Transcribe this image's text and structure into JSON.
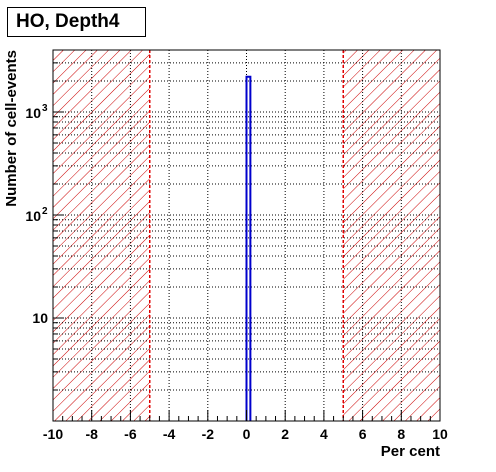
{
  "chart_data": {
    "type": "bar",
    "title": "HO, Depth4",
    "xlabel": "Per cent",
    "ylabel": "Number of cell-events",
    "x_scale": "linear",
    "y_scale": "log",
    "xlim": [
      -10,
      10
    ],
    "ylim": [
      1,
      4000
    ],
    "x_ticks": [
      -10,
      -8,
      -6,
      -4,
      -2,
      0,
      2,
      4,
      6,
      8,
      10
    ],
    "x_tick_labels": [
      "-10",
      "-8",
      "-6",
      "-4",
      "-2",
      "0",
      "2",
      "4",
      "6",
      "8",
      "10"
    ],
    "y_tick_labels": [
      {
        "value": 10,
        "base": "10",
        "exp": ""
      },
      {
        "value": 100,
        "base": "10",
        "exp": "2"
      },
      {
        "value": 1000,
        "base": "10",
        "exp": "3"
      }
    ],
    "grid": true,
    "bins": [
      {
        "x_low": 0.0,
        "x_high": 0.2,
        "value": 2200
      }
    ],
    "threshold_lines": [
      -5,
      5
    ],
    "excluded_regions": [
      [
        -10,
        -5
      ],
      [
        5,
        10
      ]
    ],
    "colors": {
      "histogram": "#0000cc",
      "threshold": "#e00000",
      "hatch": "#cc0000",
      "grid": "#000000"
    }
  }
}
